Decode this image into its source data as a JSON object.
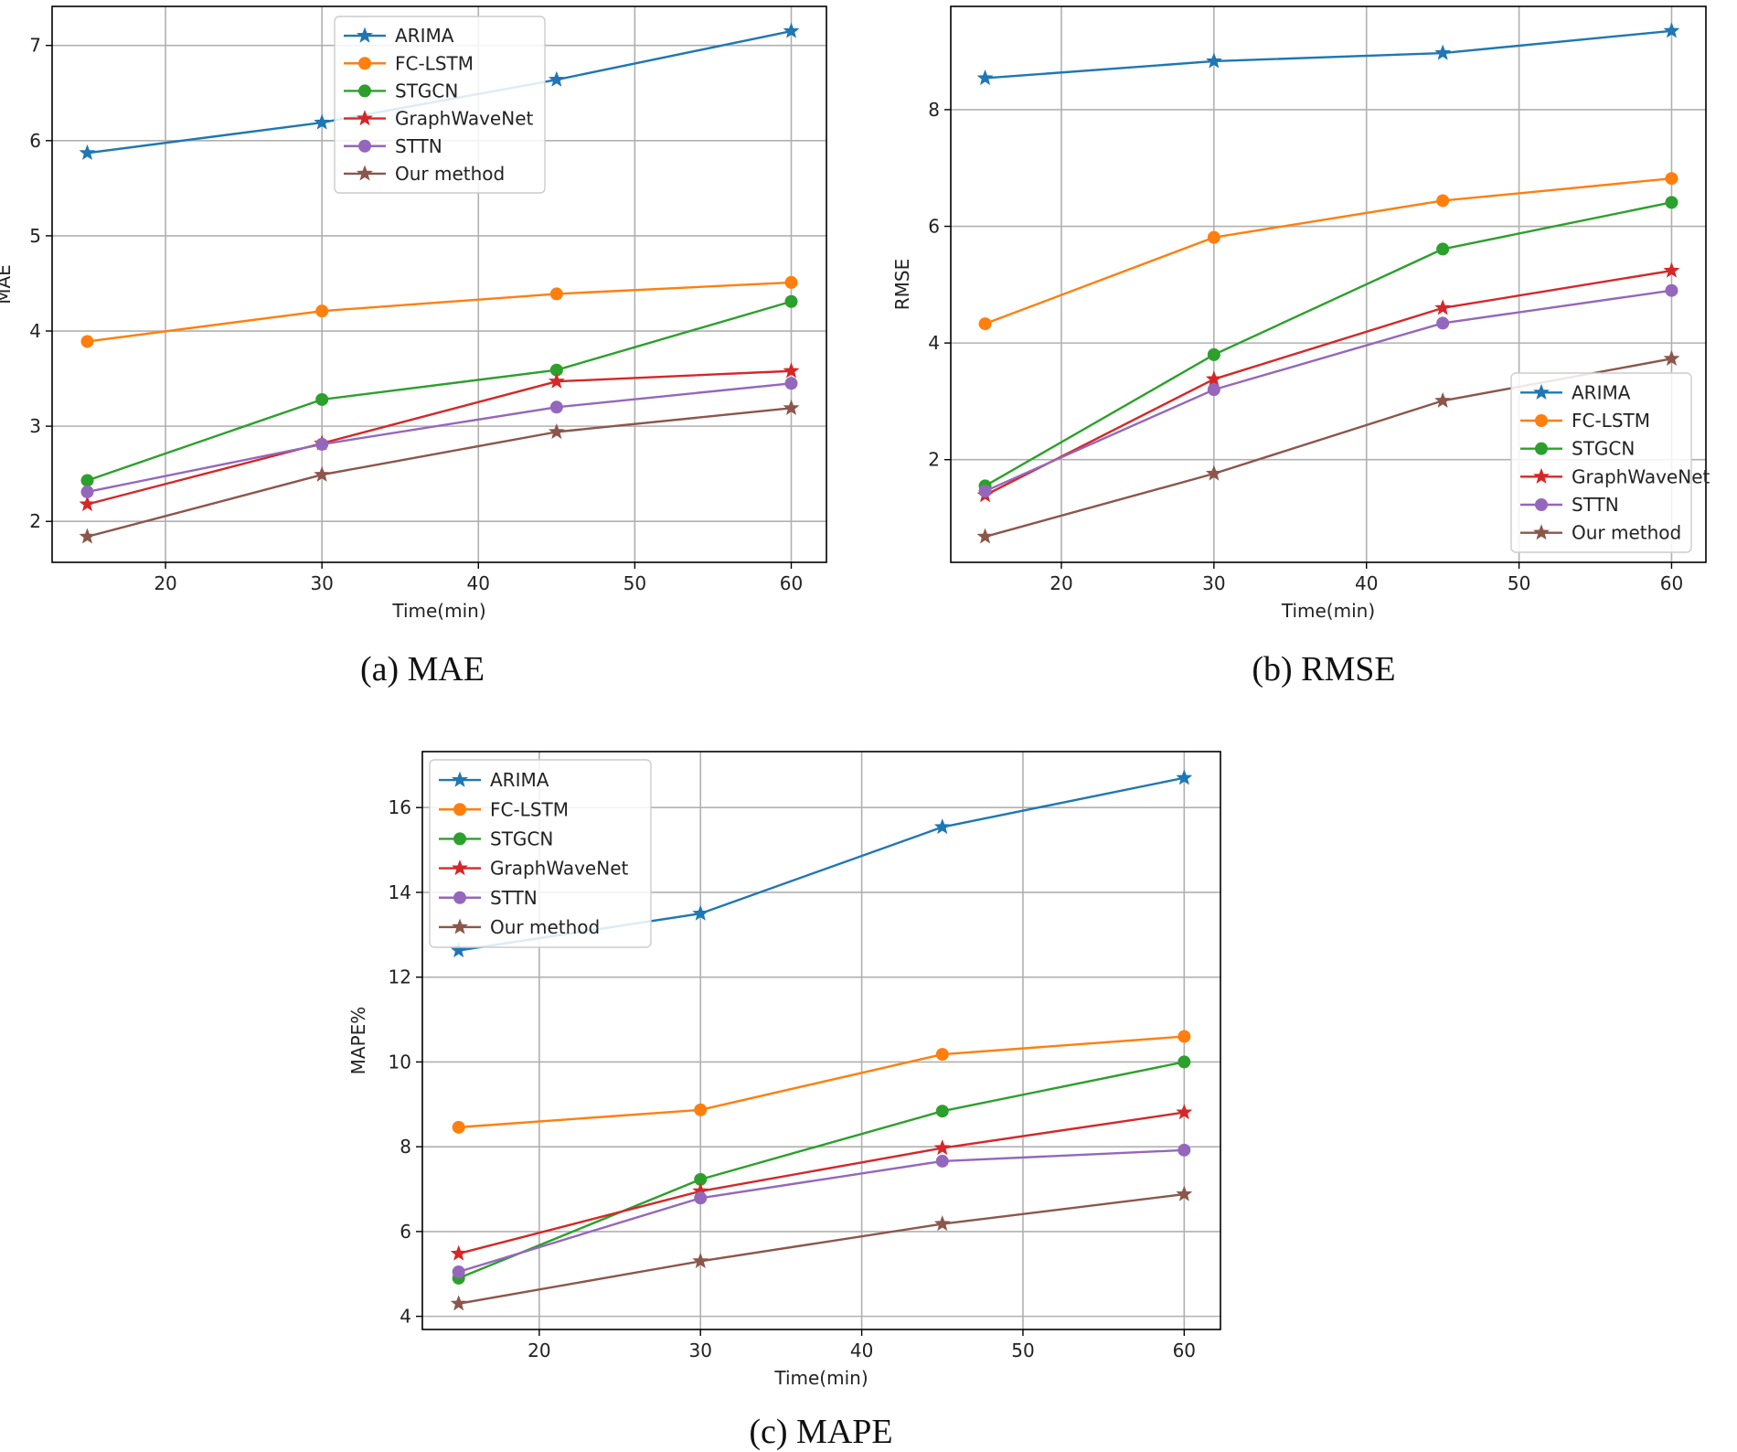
{
  "figure": {
    "captions": [
      "(a) MAE",
      "(b) RMSE",
      "(c) MAPE"
    ]
  },
  "colors": {
    "ARIMA": "#1f77b4",
    "FC-LSTM": "#ff7f0e",
    "STGCN": "#2ca02c",
    "GraphWaveNet": "#d62728",
    "STTN": "#9467bd",
    "Our method": "#8c564b"
  },
  "chart_data": [
    {
      "type": "line",
      "title": "",
      "caption": "(a) MAE",
      "xlabel": "Time(min)",
      "ylabel": "MAE",
      "x": [
        15,
        30,
        45,
        60
      ],
      "xlim": [
        12.75,
        62.25
      ],
      "ylim": [
        1.57,
        7.41
      ],
      "xticks": [
        20,
        30,
        40,
        50,
        60
      ],
      "yticks": [
        2,
        3,
        4,
        5,
        6,
        7
      ],
      "grid": true,
      "legend": "top-center",
      "series": [
        {
          "name": "ARIMA",
          "marker": "star",
          "values": [
            5.87,
            6.19,
            6.64,
            7.15
          ]
        },
        {
          "name": "FC-LSTM",
          "marker": "circle",
          "values": [
            3.89,
            4.21,
            4.39,
            4.51
          ]
        },
        {
          "name": "STGCN",
          "marker": "circle",
          "values": [
            2.43,
            3.28,
            3.59,
            4.31
          ]
        },
        {
          "name": "GraphWaveNet",
          "marker": "star",
          "values": [
            2.18,
            2.82,
            3.47,
            3.58
          ]
        },
        {
          "name": "STTN",
          "marker": "circle",
          "values": [
            2.31,
            2.81,
            3.2,
            3.45
          ]
        },
        {
          "name": "Our method",
          "marker": "star",
          "values": [
            1.84,
            2.49,
            2.94,
            3.19
          ]
        }
      ]
    },
    {
      "type": "line",
      "title": "",
      "caption": "(b) RMSE",
      "xlabel": "Time(min)",
      "ylabel": "RMSE",
      "x": [
        15,
        30,
        45,
        60
      ],
      "xlim": [
        12.75,
        62.25
      ],
      "ylim": [
        0.24,
        9.77
      ],
      "xticks": [
        20,
        30,
        40,
        50,
        60
      ],
      "yticks": [
        2,
        4,
        6,
        8
      ],
      "grid": true,
      "legend": "bottom-right",
      "series": [
        {
          "name": "ARIMA",
          "marker": "star",
          "values": [
            8.54,
            8.83,
            8.97,
            9.35
          ]
        },
        {
          "name": "FC-LSTM",
          "marker": "circle",
          "values": [
            4.33,
            5.81,
            6.44,
            6.82
          ]
        },
        {
          "name": "STGCN",
          "marker": "circle",
          "values": [
            1.55,
            3.8,
            5.61,
            6.41
          ]
        },
        {
          "name": "GraphWaveNet",
          "marker": "star",
          "values": [
            1.39,
            3.38,
            4.6,
            5.24
          ]
        },
        {
          "name": "STTN",
          "marker": "circle",
          "values": [
            1.46,
            3.2,
            4.34,
            4.9
          ]
        },
        {
          "name": "Our method",
          "marker": "star",
          "values": [
            0.68,
            1.76,
            3.01,
            3.73
          ]
        }
      ]
    },
    {
      "type": "line",
      "title": "",
      "caption": "(c) MAPE",
      "xlabel": "Time(min)",
      "ylabel": "MAPE%",
      "x": [
        15,
        30,
        45,
        60
      ],
      "xlim": [
        12.75,
        62.25
      ],
      "ylim": [
        3.69,
        17.32
      ],
      "xticks": [
        20,
        30,
        40,
        50,
        60
      ],
      "yticks": [
        4,
        6,
        8,
        10,
        12,
        14,
        16
      ],
      "grid": true,
      "legend": "top-left",
      "series": [
        {
          "name": "ARIMA",
          "marker": "star",
          "values": [
            12.63,
            13.5,
            15.54,
            16.7
          ]
        },
        {
          "name": "FC-LSTM",
          "marker": "circle",
          "values": [
            8.46,
            8.87,
            10.18,
            10.6
          ]
        },
        {
          "name": "STGCN",
          "marker": "circle",
          "values": [
            4.9,
            7.23,
            8.84,
            10.0
          ]
        },
        {
          "name": "GraphWaveNet",
          "marker": "star",
          "values": [
            5.48,
            6.95,
            7.97,
            8.81
          ]
        },
        {
          "name": "STTN",
          "marker": "circle",
          "values": [
            5.05,
            6.79,
            7.66,
            7.92
          ]
        },
        {
          "name": "Our method",
          "marker": "star",
          "values": [
            4.3,
            5.3,
            6.18,
            6.88
          ]
        }
      ]
    }
  ]
}
